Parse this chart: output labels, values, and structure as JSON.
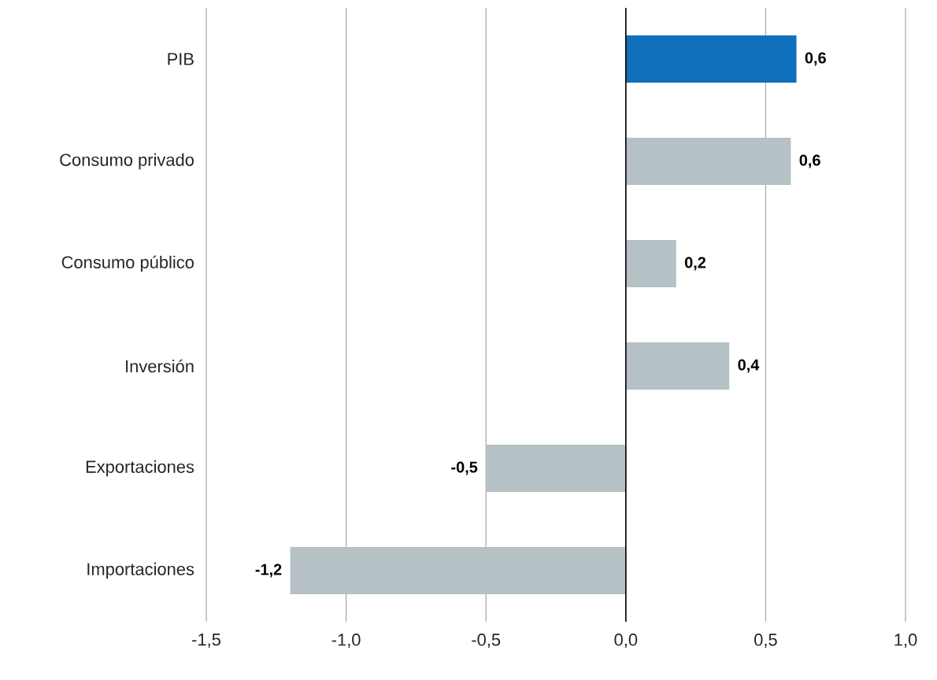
{
  "chart_data": {
    "type": "bar",
    "orientation": "horizontal",
    "categories": [
      "PIB",
      "Consumo privado",
      "Consumo público",
      "Inversión",
      "Exportaciones",
      "Importaciones"
    ],
    "values": [
      0.61,
      0.59,
      0.18,
      0.37,
      -0.5,
      -1.2
    ],
    "value_labels": [
      "0,6",
      "0,6",
      "0,2",
      "0,4",
      "-0,5",
      "-1,2"
    ],
    "colors": [
      "#1170bb",
      "#b5c1c4",
      "#b5c1c4",
      "#b5c1c4",
      "#b5c1c4",
      "#b5c1c4"
    ],
    "xlim": [
      -1.5,
      1.0
    ],
    "xticks": [
      {
        "value": -1.5,
        "label": "-1,5"
      },
      {
        "value": -1.0,
        "label": "-1,0"
      },
      {
        "value": -0.5,
        "label": "-0,5"
      },
      {
        "value": 0.0,
        "label": "0,0"
      },
      {
        "value": 0.5,
        "label": "0,5"
      },
      {
        "value": 1.0,
        "label": "1,0"
      }
    ],
    "grid": "x"
  }
}
